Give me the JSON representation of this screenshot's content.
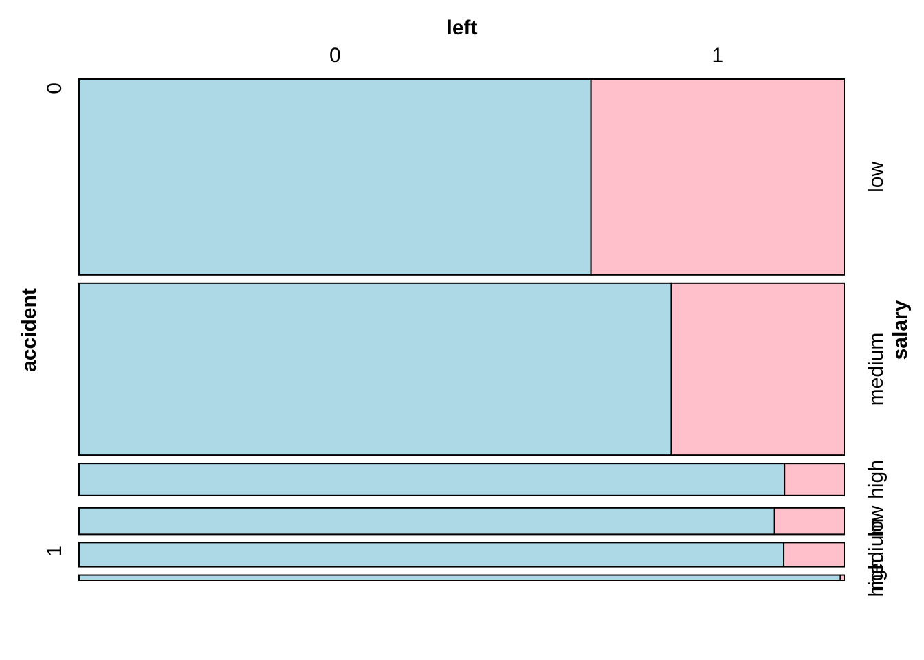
{
  "chart_data": {
    "type": "mosaic",
    "x_variable": "left",
    "y_variable": "accident",
    "z_variable": "salary",
    "left_levels": [
      "0",
      "1"
    ],
    "top_left_labels": [
      "0",
      "1"
    ],
    "accident_groups": [
      {
        "level": "0",
        "salary_levels": [
          {
            "name": "low",
            "weight": 0.421,
            "left_share": [
              0.669,
              0.331
            ]
          },
          {
            "name": "medium",
            "weight": 0.37,
            "left_share": [
              0.774,
              0.226
            ]
          },
          {
            "name": "high",
            "weight": 0.069,
            "left_share": [
              0.922,
              0.078
            ]
          }
        ]
      },
      {
        "level": "1",
        "salary_levels": [
          {
            "name": "low",
            "weight": 0.057,
            "left_share": [
              0.909,
              0.091
            ]
          },
          {
            "name": "medium",
            "weight": 0.052,
            "left_share": [
              0.921,
              0.079
            ]
          },
          {
            "name": "high",
            "weight": 0.011,
            "left_share": [
              0.995,
              0.005
            ]
          }
        ]
      }
    ],
    "colors": {
      "left_0": "#add8e6",
      "left_1": "#ffc0cb"
    }
  },
  "labels": {
    "x_title": "left",
    "y_title": "accident",
    "z_title": "salary"
  }
}
